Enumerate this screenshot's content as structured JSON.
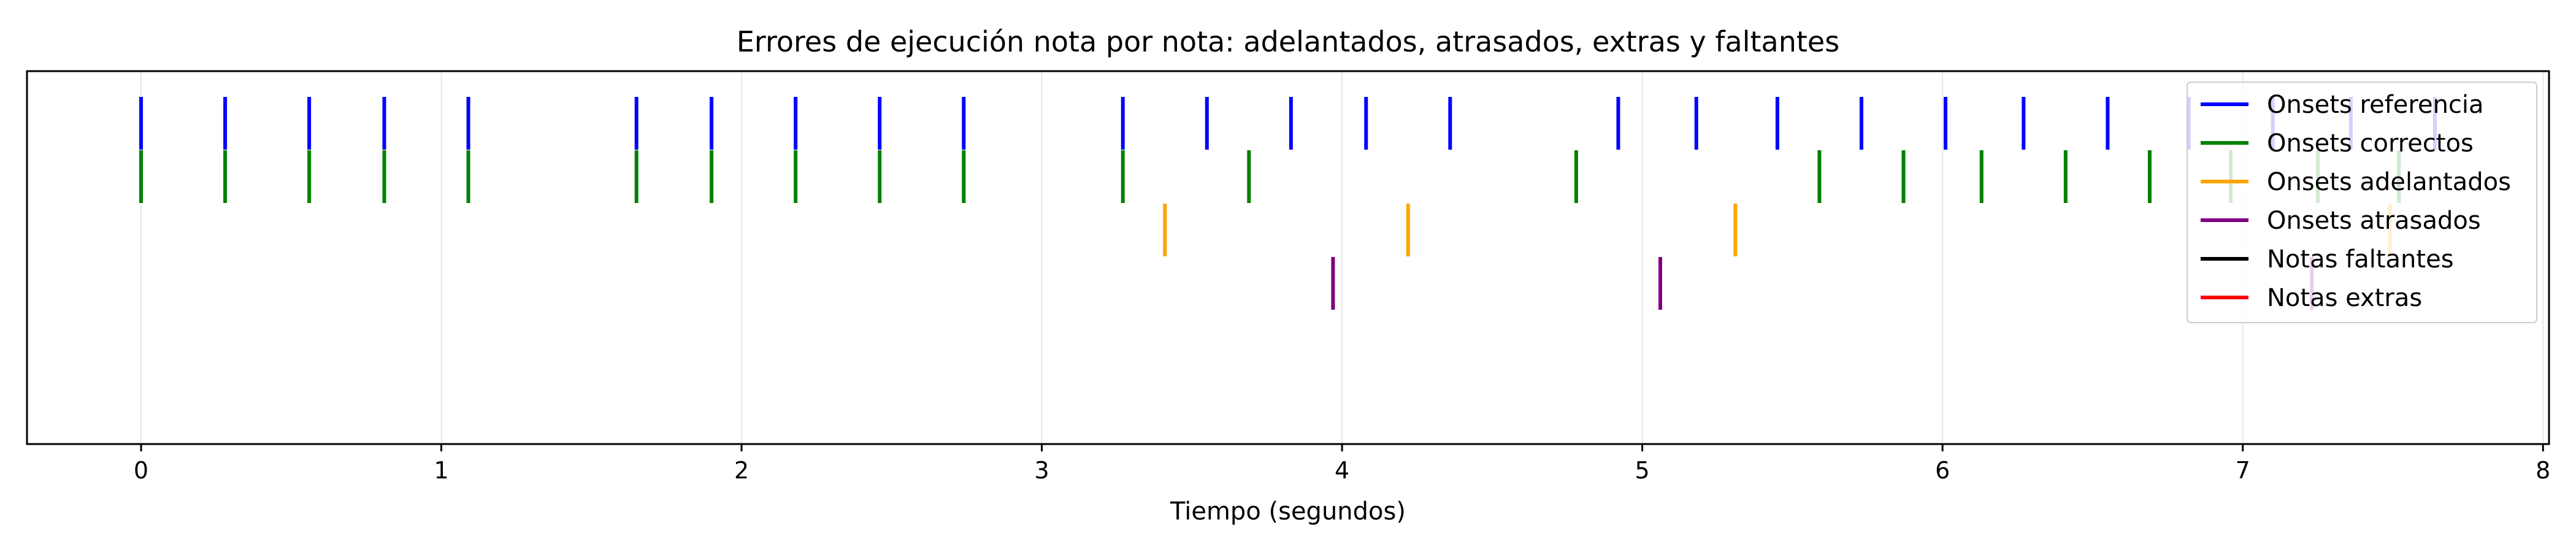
{
  "chart_data": {
    "type": "event-plot",
    "title": "Errores de ejecución nota por nota: adelantados, atrasados, extras y faltantes",
    "xlabel": "Tiempo (segundos)",
    "ylabel": "",
    "xlim": [
      -0.38,
      8.02
    ],
    "xticks": [
      0,
      1,
      2,
      3,
      4,
      5,
      6,
      7,
      8
    ],
    "grid": "vertical",
    "legend_position": "top-right",
    "series": [
      {
        "name": "Onsets referencia",
        "color": "#0000ff",
        "row": 1,
        "x": [
          0.0,
          0.28,
          0.56,
          0.81,
          1.09,
          1.65,
          1.9,
          2.18,
          2.46,
          2.74,
          3.27,
          3.55,
          3.83,
          4.08,
          4.36,
          4.92,
          5.18,
          5.45,
          5.73,
          6.01,
          6.27,
          6.55,
          6.82,
          7.1,
          7.36,
          7.64
        ]
      },
      {
        "name": "Onsets correctos",
        "color": "#008000",
        "row": 2,
        "x": [
          0.0,
          0.28,
          0.56,
          0.81,
          1.09,
          1.65,
          1.9,
          2.18,
          2.46,
          2.74,
          3.27,
          3.69,
          4.78,
          5.59,
          5.87,
          6.13,
          6.41,
          6.69,
          6.96,
          7.25,
          7.52
        ]
      },
      {
        "name": "Onsets adelantados",
        "color": "#ffa500",
        "row": 3,
        "x": [
          3.41,
          4.22,
          5.31,
          7.49
        ]
      },
      {
        "name": "Onsets atrasados",
        "color": "#800080",
        "row": 4,
        "x": [
          3.97,
          5.06,
          7.23
        ]
      },
      {
        "name": "Notas faltantes",
        "color": "#000000",
        "row": 5,
        "x": []
      },
      {
        "name": "Notas extras",
        "color": "#ff0000",
        "row": 6,
        "x": []
      }
    ]
  }
}
